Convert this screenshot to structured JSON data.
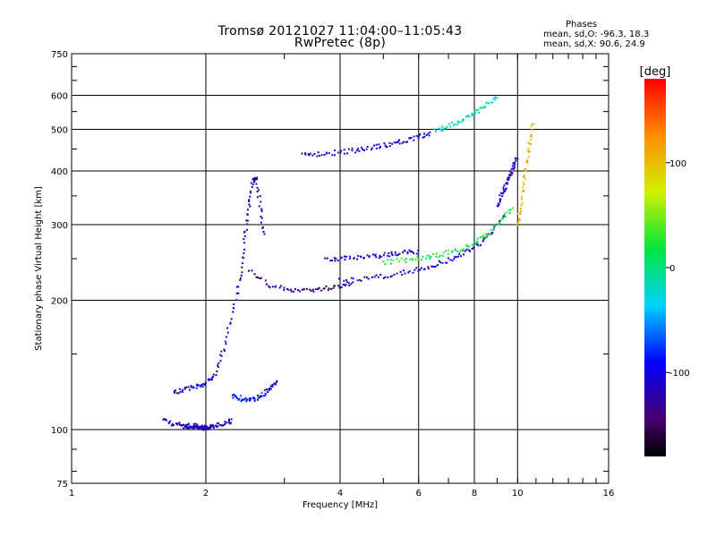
{
  "header": {
    "title": "Tromsø 20121027 11:04:00–11:05:43",
    "subtitle": "RwPretec (8p)"
  },
  "phase_box": {
    "heading": "Phases",
    "line1": "mean, sd,O: -96.3, 18.3",
    "line2": "mean, sd,X:  90.6, 24.9"
  },
  "colorbar": {
    "unit_label": "[deg]",
    "ticks": [
      {
        "value": 100,
        "label": "100"
      },
      {
        "value": 0,
        "label": "0"
      },
      {
        "value": -100,
        "label": "-100"
      }
    ],
    "range": [
      -180,
      180
    ]
  },
  "chart_data": {
    "type": "scatter",
    "xlabel": "Frequency [MHz]",
    "ylabel": "Stationary phase Virtual Height [km]",
    "xscale": "log",
    "yscale": "log",
    "xlim": [
      1,
      16
    ],
    "ylim": [
      75,
      750
    ],
    "x_ticks": [
      1,
      2,
      4,
      6,
      8,
      10,
      16
    ],
    "y_ticks": [
      75,
      100,
      200,
      300,
      400,
      500,
      600,
      750
    ],
    "x_gridlines": [
      2,
      4,
      6,
      8,
      10
    ],
    "y_gridlines": [
      100,
      200,
      300,
      400,
      500,
      600
    ],
    "color_by": "phase [deg]",
    "traces": [
      {
        "x": [
          1.78,
          1.84,
          1.9,
          1.96,
          2.02,
          2.08
        ],
        "y": [
          102,
          101,
          101,
          101,
          101,
          102
        ],
        "phase": -110
      },
      {
        "x": [
          1.6,
          1.7,
          1.8,
          1.9,
          2.0,
          2.1,
          2.2,
          2.3
        ],
        "y": [
          105,
          103,
          102,
          102,
          101,
          102,
          103,
          105
        ],
        "phase": -120
      },
      {
        "x": [
          1.7,
          1.8,
          1.9,
          2.0,
          2.1,
          2.2,
          2.3,
          2.4
        ],
        "y": [
          122,
          124,
          126,
          128,
          135,
          155,
          190,
          230
        ],
        "phase": -105
      },
      {
        "x": [
          2.3,
          2.4,
          2.5,
          2.6,
          2.7,
          2.8,
          2.9
        ],
        "y": [
          120,
          118,
          117,
          118,
          121,
          125,
          130
        ],
        "phase": -95
      },
      {
        "x": [
          2.4,
          2.45,
          2.5,
          2.55,
          2.6,
          2.65,
          2.7
        ],
        "y": [
          230,
          280,
          330,
          380,
          385,
          330,
          280
        ],
        "phase": -120
      },
      {
        "x": [
          2.5,
          2.8,
          3.1,
          3.4,
          3.7,
          4.0,
          4.3
        ],
        "y": [
          235,
          215,
          212,
          211,
          213,
          216,
          220
        ],
        "phase": -130
      },
      {
        "x": [
          3.7,
          4.0,
          4.4,
          4.8,
          5.2,
          5.6,
          6.0
        ],
        "y": [
          250,
          250,
          251,
          253,
          256,
          258,
          260
        ],
        "phase": -105
      },
      {
        "x": [
          4.0,
          4.6,
          5.2,
          5.8,
          6.4,
          7.0,
          7.6,
          8.2,
          8.8,
          9.4
        ],
        "y": [
          222,
          225,
          229,
          234,
          240,
          248,
          258,
          270,
          288,
          320
        ],
        "phase": -110
      },
      {
        "x": [
          5.0,
          5.6,
          6.2,
          6.8,
          7.4,
          8.0,
          8.6,
          9.2,
          9.8
        ],
        "y": [
          245,
          248,
          252,
          256,
          262,
          272,
          285,
          305,
          335
        ],
        "phase": 20
      },
      {
        "x": [
          9.0,
          9.2,
          9.4,
          9.6,
          9.8,
          10.0
        ],
        "y": [
          330,
          350,
          370,
          390,
          410,
          430
        ],
        "phase": -110
      },
      {
        "x": [
          10.0,
          10.2,
          10.4,
          10.6,
          10.8
        ],
        "y": [
          300,
          340,
          390,
          450,
          520
        ],
        "phase": 110
      },
      {
        "x": [
          3.3,
          3.6,
          4.0,
          4.4,
          4.8,
          5.2,
          5.6,
          6.0,
          6.4
        ],
        "y": [
          435,
          438,
          442,
          448,
          455,
          462,
          470,
          480,
          490
        ],
        "phase": -110
      },
      {
        "x": [
          6.5,
          7.0,
          7.5,
          8.0,
          8.5,
          9.0
        ],
        "y": [
          495,
          510,
          525,
          545,
          570,
          600
        ],
        "phase": -20
      }
    ]
  }
}
